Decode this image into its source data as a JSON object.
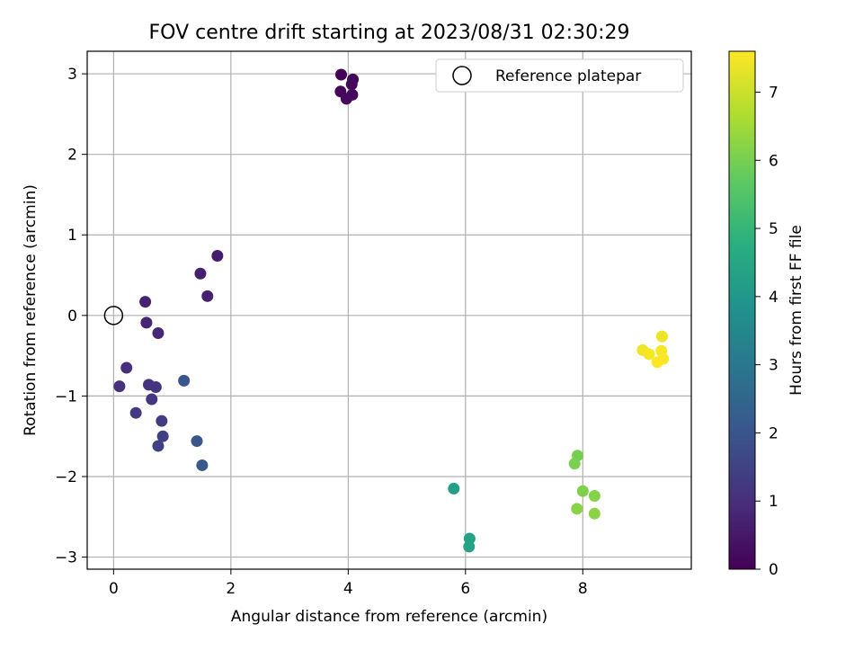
{
  "chart_data": {
    "type": "scatter",
    "title": "FOV centre drift starting at 2023/08/31 02:30:29",
    "xlabel": "Angular distance from reference (arcmin)",
    "ylabel": "Rotation from reference (arcmin)",
    "xlim": [
      -0.45,
      9.85
    ],
    "ylim": [
      -3.15,
      3.28
    ],
    "xticks": [
      0,
      2,
      4,
      6,
      8
    ],
    "yticks": [
      -3,
      -2,
      -1,
      0,
      1,
      2,
      3
    ],
    "grid": true,
    "legend": {
      "placement": "top-right",
      "entries": [
        "Reference platepar"
      ]
    },
    "reference_point": {
      "x": 0,
      "y": 0
    },
    "colorbar": {
      "label": "Hours from first FF file",
      "range": [
        0,
        7.6
      ],
      "ticks": [
        0,
        1,
        2,
        3,
        4,
        5,
        6,
        7
      ],
      "colormap": "viridis"
    },
    "points": [
      {
        "x": 3.88,
        "y": 2.99,
        "c": 0.05
      },
      {
        "x": 4.08,
        "y": 2.93,
        "c": 0.1
      },
      {
        "x": 4.06,
        "y": 2.87,
        "c": 0.15
      },
      {
        "x": 3.87,
        "y": 2.78,
        "c": 0.1
      },
      {
        "x": 4.07,
        "y": 2.74,
        "c": 0.15
      },
      {
        "x": 3.97,
        "y": 2.69,
        "c": 0.2
      },
      {
        "x": 1.77,
        "y": 0.74,
        "c": 0.6
      },
      {
        "x": 1.48,
        "y": 0.52,
        "c": 0.65
      },
      {
        "x": 1.6,
        "y": 0.24,
        "c": 0.7
      },
      {
        "x": 0.54,
        "y": 0.17,
        "c": 0.75
      },
      {
        "x": 0.56,
        "y": -0.09,
        "c": 0.8
      },
      {
        "x": 0.76,
        "y": -0.22,
        "c": 0.85
      },
      {
        "x": 0.22,
        "y": -0.65,
        "c": 1.0
      },
      {
        "x": 0.1,
        "y": -0.88,
        "c": 1.05
      },
      {
        "x": 0.6,
        "y": -0.86,
        "c": 1.1
      },
      {
        "x": 0.72,
        "y": -0.89,
        "c": 1.15
      },
      {
        "x": 0.65,
        "y": -1.04,
        "c": 1.2
      },
      {
        "x": 0.38,
        "y": -1.21,
        "c": 1.3
      },
      {
        "x": 0.82,
        "y": -1.31,
        "c": 1.35
      },
      {
        "x": 0.84,
        "y": -1.5,
        "c": 1.4
      },
      {
        "x": 0.76,
        "y": -1.62,
        "c": 1.45
      },
      {
        "x": 1.2,
        "y": -0.81,
        "c": 2.0
      },
      {
        "x": 1.42,
        "y": -1.56,
        "c": 2.05
      },
      {
        "x": 1.51,
        "y": -1.86,
        "c": 2.1
      },
      {
        "x": 5.8,
        "y": -2.15,
        "c": 4.3
      },
      {
        "x": 6.07,
        "y": -2.77,
        "c": 4.35
      },
      {
        "x": 6.06,
        "y": -2.87,
        "c": 4.4
      },
      {
        "x": 7.91,
        "y": -1.74,
        "c": 6.0
      },
      {
        "x": 7.86,
        "y": -1.84,
        "c": 6.05
      },
      {
        "x": 8.0,
        "y": -2.18,
        "c": 6.1
      },
      {
        "x": 8.2,
        "y": -2.24,
        "c": 6.15
      },
      {
        "x": 7.9,
        "y": -2.4,
        "c": 6.2
      },
      {
        "x": 8.2,
        "y": -2.46,
        "c": 6.25
      },
      {
        "x": 9.35,
        "y": -0.26,
        "c": 7.4
      },
      {
        "x": 9.02,
        "y": -0.43,
        "c": 7.45
      },
      {
        "x": 9.13,
        "y": -0.48,
        "c": 7.5
      },
      {
        "x": 9.34,
        "y": -0.44,
        "c": 7.5
      },
      {
        "x": 9.37,
        "y": -0.54,
        "c": 7.55
      },
      {
        "x": 9.27,
        "y": -0.58,
        "c": 7.6
      }
    ]
  }
}
